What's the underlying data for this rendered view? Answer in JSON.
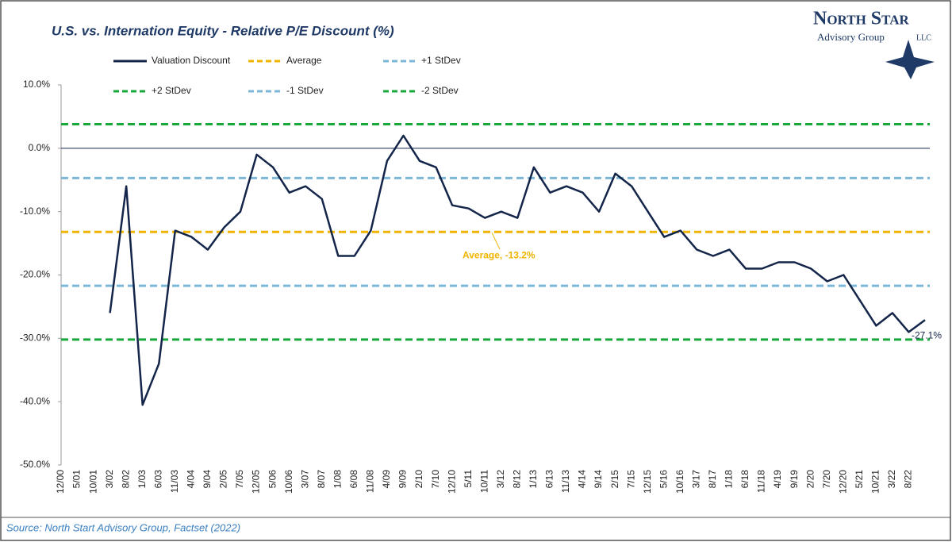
{
  "chart_data": {
    "type": "line",
    "title": "U.S. vs. Internation Equity -  Relative P/E Discount (%)",
    "source": "Source: North Start Advisory Group, Factset (2022)",
    "logo": {
      "name": "North Star",
      "subtitle": "Advisory Group",
      "suffix": "LLC"
    },
    "categories": [
      "12/00",
      "5/01",
      "10/01",
      "3/02",
      "8/02",
      "1/03",
      "6/03",
      "11/03",
      "4/04",
      "9/04",
      "2/05",
      "7/05",
      "12/05",
      "5/06",
      "10/06",
      "3/07",
      "8/07",
      "1/08",
      "6/08",
      "11/08",
      "4/09",
      "9/09",
      "2/10",
      "7/10",
      "12/10",
      "5/11",
      "10/11",
      "3/12",
      "8/12",
      "1/13",
      "6/13",
      "11/13",
      "4/14",
      "9/14",
      "2/15",
      "7/15",
      "12/15",
      "5/16",
      "10/16",
      "3/17",
      "8/17",
      "1/18",
      "6/18",
      "11/18",
      "4/19",
      "9/19",
      "2/20",
      "7/20",
      "12/20",
      "5/21",
      "10/21",
      "3/22",
      "8/22",
      null
    ],
    "series": [
      {
        "name": "Valuation Discount",
        "color": "#14254a",
        "values": [
          null,
          null,
          null,
          -26,
          -6,
          -40.5,
          -34,
          -13,
          -14,
          -16,
          -12.5,
          -10,
          -1,
          -3,
          -7,
          -6,
          -8,
          -17,
          -17,
          -13,
          -2,
          2,
          -2,
          -3,
          -9,
          -9.5,
          -11,
          -10,
          -11,
          -3,
          -7,
          -6,
          -7,
          -10,
          -4,
          -6,
          -10,
          -14,
          -13,
          -16,
          -17,
          -16,
          -19,
          -19,
          -18,
          -18,
          -19,
          -21,
          -20,
          -24,
          -28,
          -26,
          -29,
          -27.1
        ],
        "value_labels": [
          null,
          null,
          null,
          null,
          null,
          null,
          null,
          null,
          null,
          null,
          null,
          null,
          null,
          null,
          null,
          null,
          null,
          null,
          null,
          null,
          null,
          null,
          null,
          null,
          null,
          null,
          null,
          null,
          null,
          null,
          null,
          null,
          null,
          null,
          null,
          null,
          null,
          null,
          null,
          null,
          null,
          null,
          null,
          null,
          null,
          null,
          null,
          null,
          null,
          null,
          null,
          null,
          null,
          "-27.1%"
        ]
      }
    ],
    "reference_lines": [
      {
        "name": "Average",
        "color": "#f0b400",
        "value": -13.2,
        "label": "Average, -13.2%"
      },
      {
        "name": "+2 StDev",
        "color": "#19a83c",
        "value": 3.8
      },
      {
        "name": "+1 StDev",
        "color": "#7db7d8",
        "value": -4.7
      },
      {
        "name": "-1 StDev",
        "color": "#7db7d8",
        "value": -21.7
      },
      {
        "name": "-2 StDev",
        "color": "#19a83c",
        "value": -30.2
      }
    ],
    "ylim": [
      -50,
      10
    ],
    "yticks": [
      {
        "value": 10,
        "label": "10.0%"
      },
      {
        "value": 0,
        "label": "0.0%"
      },
      {
        "value": -10,
        "label": "-10.0%"
      },
      {
        "value": -20,
        "label": "-20.0%"
      },
      {
        "value": -30,
        "label": "-30.0%"
      },
      {
        "value": -40,
        "label": "-40.0%"
      },
      {
        "value": -50,
        "label": "-50.0%"
      }
    ]
  }
}
